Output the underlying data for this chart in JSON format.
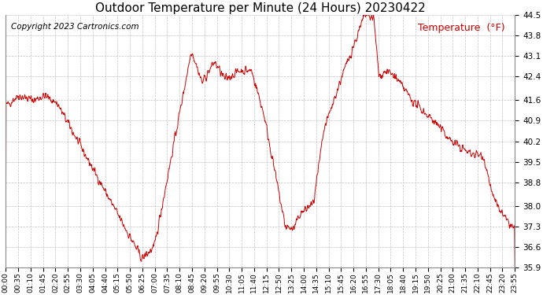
{
  "title": "Outdoor Temperature per Minute (24 Hours) 20230422",
  "copyright": "Copyright 2023 Cartronics.com",
  "legend_label": "Temperature  (°F)",
  "line_color": "#cc0000",
  "background_color": "#ffffff",
  "plot_bg_color": "#ffffff",
  "grid_color": "#bbbbbb",
  "grid_style": "--",
  "legend_color": "#cc0000",
  "ylim": [
    35.9,
    44.5
  ],
  "yticks": [
    35.9,
    36.6,
    37.3,
    38.0,
    38.8,
    39.5,
    40.2,
    40.9,
    41.6,
    42.4,
    43.1,
    43.8,
    44.5
  ],
  "xtick_labels": [
    "00:00",
    "00:35",
    "01:10",
    "01:45",
    "02:20",
    "02:55",
    "03:30",
    "04:05",
    "04:40",
    "05:15",
    "05:50",
    "06:25",
    "07:00",
    "07:35",
    "08:10",
    "08:45",
    "09:20",
    "09:55",
    "10:30",
    "11:05",
    "11:40",
    "12:15",
    "12:50",
    "13:25",
    "14:00",
    "14:35",
    "15:10",
    "15:45",
    "16:20",
    "16:55",
    "17:30",
    "18:05",
    "18:40",
    "19:15",
    "19:50",
    "20:25",
    "21:00",
    "21:35",
    "22:10",
    "22:45",
    "23:20",
    "23:55"
  ],
  "title_fontsize": 11,
  "tick_fontsize": 6.5,
  "copyright_fontsize": 7.5,
  "legend_fontsize": 9,
  "figsize": [
    6.9,
    3.75
  ],
  "dpi": 100
}
